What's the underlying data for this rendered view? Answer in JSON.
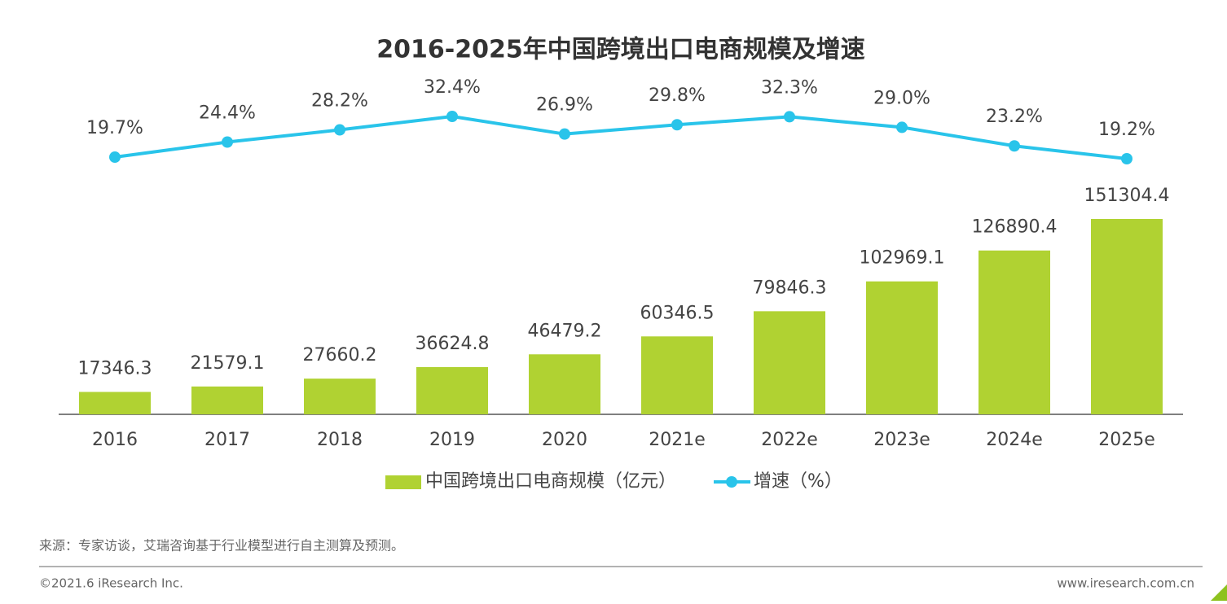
{
  "chart_data": {
    "type": "combo",
    "title": "2016-2025年中国跨境出口电商规模及增速",
    "categories": [
      "2016",
      "2017",
      "2018",
      "2019",
      "2020",
      "2021e",
      "2022e",
      "2023e",
      "2024e",
      "2025e"
    ],
    "series": [
      {
        "name": "中国跨境出口电商规模（亿元）",
        "type": "bar",
        "color": "#b0d232",
        "values": [
          17346.3,
          21579.1,
          27660.2,
          36624.8,
          46479.2,
          60346.5,
          79846.3,
          102969.1,
          126890.4,
          151304.4
        ]
      },
      {
        "name": "增速（%）",
        "type": "line",
        "color": "#29c4ea",
        "values": [
          19.7,
          24.4,
          28.2,
          32.4,
          26.9,
          29.8,
          32.3,
          29.0,
          23.2,
          19.2
        ],
        "value_labels": [
          "19.7%",
          "24.4%",
          "28.2%",
          "32.4%",
          "26.9%",
          "29.8%",
          "32.3%",
          "29.0%",
          "23.2%",
          "19.2%"
        ]
      }
    ]
  },
  "footer": {
    "source": "来源：专家访谈，艾瑞咨询基于行业模型进行自主测算及预测。",
    "copyright": "©2021.6 iResearch Inc.",
    "website": "www.iresearch.com.cn"
  }
}
